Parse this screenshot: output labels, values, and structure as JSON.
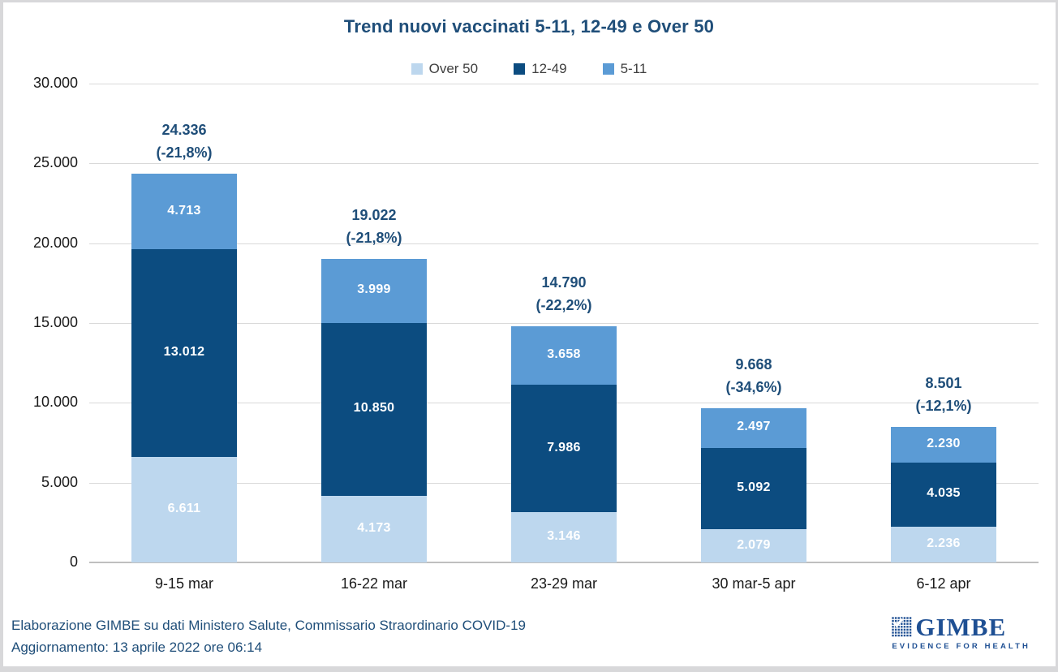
{
  "title": "Trend nuovi vaccinati 5-11, 12-49 e Over 50",
  "chart_data": {
    "type": "bar",
    "stacked": true,
    "title": "Trend nuovi vaccinati 5-11, 12-49 e Over 50",
    "categories": [
      "9-15 mar",
      "16-22 mar",
      "23-29 mar",
      "30 mar-5 apr",
      "6-12 apr"
    ],
    "series": [
      {
        "name": "Over 50",
        "color": "#BDD7EE",
        "values": [
          6611,
          4173,
          3146,
          2079,
          2236
        ]
      },
      {
        "name": "12-49",
        "color": "#0C4C80",
        "values": [
          13012,
          10850,
          7986,
          5092,
          4035
        ]
      },
      {
        "name": "5-11",
        "color": "#5B9BD5",
        "values": [
          4713,
          3999,
          3658,
          2497,
          2230
        ]
      }
    ],
    "totals": [
      {
        "value": 24336,
        "change": "(-21,8%)"
      },
      {
        "value": 19022,
        "change": "(-21,8%)"
      },
      {
        "value": 14790,
        "change": "(-22,2%)"
      },
      {
        "value": 9668,
        "change": "(-34,6%)"
      },
      {
        "value": 8501,
        "change": "(-12,1%)"
      }
    ],
    "ylim": [
      0,
      30000
    ],
    "yticks": [
      0,
      5000,
      10000,
      15000,
      20000,
      25000,
      30000
    ],
    "grid": true,
    "legend_position": "top",
    "number_format": "thousands-dot"
  },
  "colors": {
    "title_text": "#1F4E79",
    "total_label_text": "#1F4E79",
    "segment_label_text": "#FFFFFF",
    "legend_text": "#404040",
    "axis_text": "#1A1A1A",
    "gridline": "#D9D9D9",
    "axis_line": "#BFBFBF",
    "frame": "#D8D8DA",
    "background": "#FFFFFF",
    "footer_text": "#1F4E79",
    "logo_blue": "#1E4F93"
  },
  "footer": {
    "line1": "Elaborazione GIMBE su dati Ministero Salute, Commissario Straordinario COVID-19",
    "line2": "Aggiornamento: 13 aprile 2022 ore 06:14"
  },
  "logo": {
    "name": "GIMBE",
    "tagline": "EVIDENCE FOR HEALTH"
  }
}
